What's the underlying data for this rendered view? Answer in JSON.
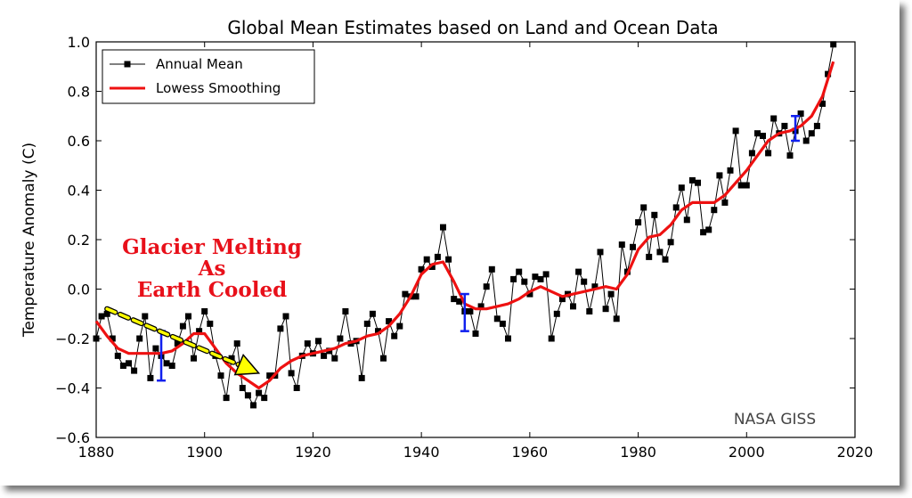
{
  "chart_data": {
    "type": "line",
    "title": "Global Mean Estimates based on Land and Ocean Data",
    "xlabel": "",
    "ylabel": "Temperature Anomaly (C)",
    "xlim": [
      1880,
      2020
    ],
    "ylim": [
      -0.6,
      1.0
    ],
    "xticks": [
      "1880",
      "1900",
      "1920",
      "1940",
      "1960",
      "1980",
      "2000",
      "2020"
    ],
    "yticks": [
      "−0.6",
      "−0.4",
      "−0.2",
      "0.0",
      "0.2",
      "0.4",
      "0.6",
      "0.8",
      "1.0"
    ],
    "grid": false,
    "legend_position": "top-left",
    "series": [
      {
        "name": "Annual Mean",
        "color": "#000000",
        "marker": "square",
        "x": [
          1880,
          1881,
          1882,
          1883,
          1884,
          1885,
          1886,
          1887,
          1888,
          1889,
          1890,
          1891,
          1892,
          1893,
          1894,
          1895,
          1896,
          1897,
          1898,
          1899,
          1900,
          1901,
          1902,
          1903,
          1904,
          1905,
          1906,
          1907,
          1908,
          1909,
          1910,
          1911,
          1912,
          1913,
          1914,
          1915,
          1916,
          1917,
          1918,
          1919,
          1920,
          1921,
          1922,
          1923,
          1924,
          1925,
          1926,
          1927,
          1928,
          1929,
          1930,
          1931,
          1932,
          1933,
          1934,
          1935,
          1936,
          1937,
          1938,
          1939,
          1940,
          1941,
          1942,
          1943,
          1944,
          1945,
          1946,
          1947,
          1948,
          1949,
          1950,
          1951,
          1952,
          1953,
          1954,
          1955,
          1956,
          1957,
          1958,
          1959,
          1960,
          1961,
          1962,
          1963,
          1964,
          1965,
          1966,
          1967,
          1968,
          1969,
          1970,
          1971,
          1972,
          1973,
          1974,
          1975,
          1976,
          1977,
          1978,
          1979,
          1980,
          1981,
          1982,
          1983,
          1984,
          1985,
          1986,
          1987,
          1988,
          1989,
          1990,
          1991,
          1992,
          1993,
          1994,
          1995,
          1996,
          1997,
          1998,
          1999,
          2000,
          2001,
          2002,
          2003,
          2004,
          2005,
          2006,
          2007,
          2008,
          2009,
          2010,
          2011,
          2012,
          2013,
          2014,
          2015,
          2016
        ],
        "y": [
          -0.2,
          -0.11,
          -0.1,
          -0.2,
          -0.27,
          -0.31,
          -0.3,
          -0.33,
          -0.2,
          -0.11,
          -0.36,
          -0.24,
          -0.27,
          -0.3,
          -0.31,
          -0.22,
          -0.15,
          -0.11,
          -0.28,
          -0.17,
          -0.09,
          -0.14,
          -0.27,
          -0.35,
          -0.44,
          -0.28,
          -0.22,
          -0.4,
          -0.43,
          -0.47,
          -0.42,
          -0.44,
          -0.35,
          -0.35,
          -0.16,
          -0.11,
          -0.34,
          -0.4,
          -0.27,
          -0.22,
          -0.26,
          -0.21,
          -0.27,
          -0.25,
          -0.28,
          -0.2,
          -0.09,
          -0.22,
          -0.21,
          -0.36,
          -0.14,
          -0.1,
          -0.17,
          -0.28,
          -0.13,
          -0.19,
          -0.15,
          -0.02,
          -0.03,
          -0.03,
          0.08,
          0.12,
          0.09,
          0.13,
          0.25,
          0.12,
          -0.04,
          -0.05,
          -0.09,
          -0.09,
          -0.18,
          -0.07,
          0.01,
          0.08,
          -0.12,
          -0.14,
          -0.2,
          0.04,
          0.07,
          0.03,
          -0.02,
          0.05,
          0.04,
          0.06,
          -0.2,
          -0.1,
          -0.04,
          -0.02,
          -0.07,
          0.07,
          0.03,
          -0.09,
          0.01,
          0.15,
          -0.08,
          -0.02,
          -0.12,
          0.18,
          0.07,
          0.17,
          0.27,
          0.33,
          0.13,
          0.3,
          0.15,
          0.12,
          0.19,
          0.33,
          0.41,
          0.28,
          0.44,
          0.43,
          0.23,
          0.24,
          0.32,
          0.46,
          0.35,
          0.48,
          0.64,
          0.42,
          0.42,
          0.55,
          0.63,
          0.62,
          0.55,
          0.69,
          0.63,
          0.66,
          0.54,
          0.64,
          0.71,
          0.6,
          0.63,
          0.66,
          0.75,
          0.87,
          0.99
        ]
      },
      {
        "name": "Lowess Smoothing",
        "color": "#ee1111",
        "x": [
          1880,
          1882,
          1884,
          1886,
          1888,
          1890,
          1892,
          1894,
          1896,
          1898,
          1900,
          1902,
          1904,
          1906,
          1908,
          1910,
          1912,
          1914,
          1916,
          1918,
          1920,
          1922,
          1924,
          1926,
          1928,
          1930,
          1932,
          1934,
          1936,
          1938,
          1940,
          1942,
          1944,
          1946,
          1948,
          1950,
          1952,
          1954,
          1956,
          1958,
          1960,
          1962,
          1964,
          1966,
          1968,
          1970,
          1972,
          1974,
          1976,
          1978,
          1980,
          1982,
          1984,
          1986,
          1988,
          1990,
          1992,
          1994,
          1996,
          1998,
          2000,
          2002,
          2004,
          2006,
          2008,
          2010,
          2012,
          2014,
          2016
        ],
        "y": [
          -0.13,
          -0.19,
          -0.24,
          -0.26,
          -0.26,
          -0.26,
          -0.26,
          -0.25,
          -0.22,
          -0.18,
          -0.18,
          -0.24,
          -0.3,
          -0.34,
          -0.37,
          -0.4,
          -0.37,
          -0.32,
          -0.29,
          -0.27,
          -0.26,
          -0.25,
          -0.24,
          -0.22,
          -0.21,
          -0.19,
          -0.18,
          -0.15,
          -0.1,
          -0.03,
          0.06,
          0.1,
          0.11,
          0.03,
          -0.06,
          -0.08,
          -0.08,
          -0.07,
          -0.06,
          -0.04,
          -0.01,
          0.01,
          -0.01,
          -0.03,
          -0.02,
          -0.01,
          0.0,
          0.01,
          0.0,
          0.06,
          0.16,
          0.21,
          0.22,
          0.26,
          0.32,
          0.35,
          0.35,
          0.35,
          0.38,
          0.43,
          0.48,
          0.54,
          0.6,
          0.63,
          0.64,
          0.66,
          0.7,
          0.78,
          0.92
        ]
      }
    ],
    "error_bars": [
      {
        "x": 1892,
        "y_low": -0.37,
        "y_high": -0.17
      },
      {
        "x": 1948,
        "y_low": -0.17,
        "y_high": -0.02
      },
      {
        "x": 2009,
        "y_low": 0.6,
        "y_high": 0.7
      }
    ],
    "annotation": {
      "lines": [
        "Glacier Melting",
        "As",
        "Earth Cooled"
      ],
      "color": "#e8101a",
      "arrow_fill": "#ffff00",
      "arrow_from": {
        "x": 1882,
        "y": -0.08
      },
      "arrow_to": {
        "x": 1910,
        "y": -0.34
      }
    },
    "credit": "NASA GISS"
  }
}
